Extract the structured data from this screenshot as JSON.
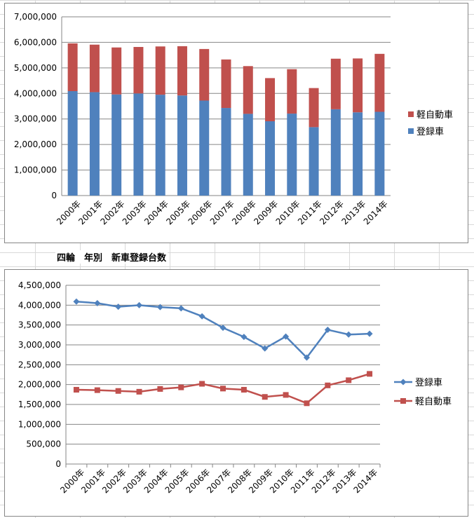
{
  "sheet": {
    "label": "四輪　年別　新車登録台数"
  },
  "chart_data": [
    {
      "type": "bar",
      "stacked": true,
      "title": "",
      "categories": [
        "2000年",
        "2001年",
        "2002年",
        "2003年",
        "2004年",
        "2005年",
        "2006年",
        "2007年",
        "2008年",
        "2009年",
        "2010年",
        "2011年",
        "2012年",
        "2013年",
        "2014年"
      ],
      "ylim": [
        0,
        7000000
      ],
      "yticks": [
        "0",
        "1,000,000",
        "2,000,000",
        "3,000,000",
        "4,000,000",
        "5,000,000",
        "6,000,000",
        "7,000,000"
      ],
      "grid": true,
      "legend_position": "right",
      "series": [
        {
          "name": "登録車",
          "color": "#4f81bd",
          "values": [
            4090000,
            4050000,
            3960000,
            4000000,
            3950000,
            3920000,
            3720000,
            3430000,
            3200000,
            2910000,
            3210000,
            2680000,
            3380000,
            3260000,
            3280000
          ]
        },
        {
          "name": "軽自動車",
          "color": "#c0504d",
          "values": [
            1870000,
            1860000,
            1840000,
            1820000,
            1890000,
            1930000,
            2020000,
            1900000,
            1870000,
            1690000,
            1740000,
            1530000,
            1980000,
            2110000,
            2270000
          ]
        }
      ]
    },
    {
      "type": "line",
      "title": "",
      "categories": [
        "2000年",
        "2001年",
        "2002年",
        "2003年",
        "2004年",
        "2005年",
        "2006年",
        "2007年",
        "2008年",
        "2009年",
        "2010年",
        "2011年",
        "2012年",
        "2013年",
        "2014年"
      ],
      "ylim": [
        0,
        4500000
      ],
      "yticks": [
        "0",
        "500,000",
        "1,000,000",
        "1,500,000",
        "2,000,000",
        "2,500,000",
        "3,000,000",
        "3,500,000",
        "4,000,000",
        "4,500,000"
      ],
      "grid": true,
      "legend_position": "right",
      "series": [
        {
          "name": "登録車",
          "color": "#4f81bd",
          "marker": "diamond",
          "values": [
            4090000,
            4050000,
            3960000,
            4000000,
            3950000,
            3920000,
            3720000,
            3430000,
            3200000,
            2910000,
            3210000,
            2680000,
            3380000,
            3260000,
            3280000
          ]
        },
        {
          "name": "軽自動車",
          "color": "#c0504d",
          "marker": "square",
          "values": [
            1870000,
            1860000,
            1840000,
            1820000,
            1890000,
            1930000,
            2020000,
            1900000,
            1870000,
            1690000,
            1740000,
            1530000,
            1980000,
            2110000,
            2270000
          ]
        }
      ]
    }
  ]
}
